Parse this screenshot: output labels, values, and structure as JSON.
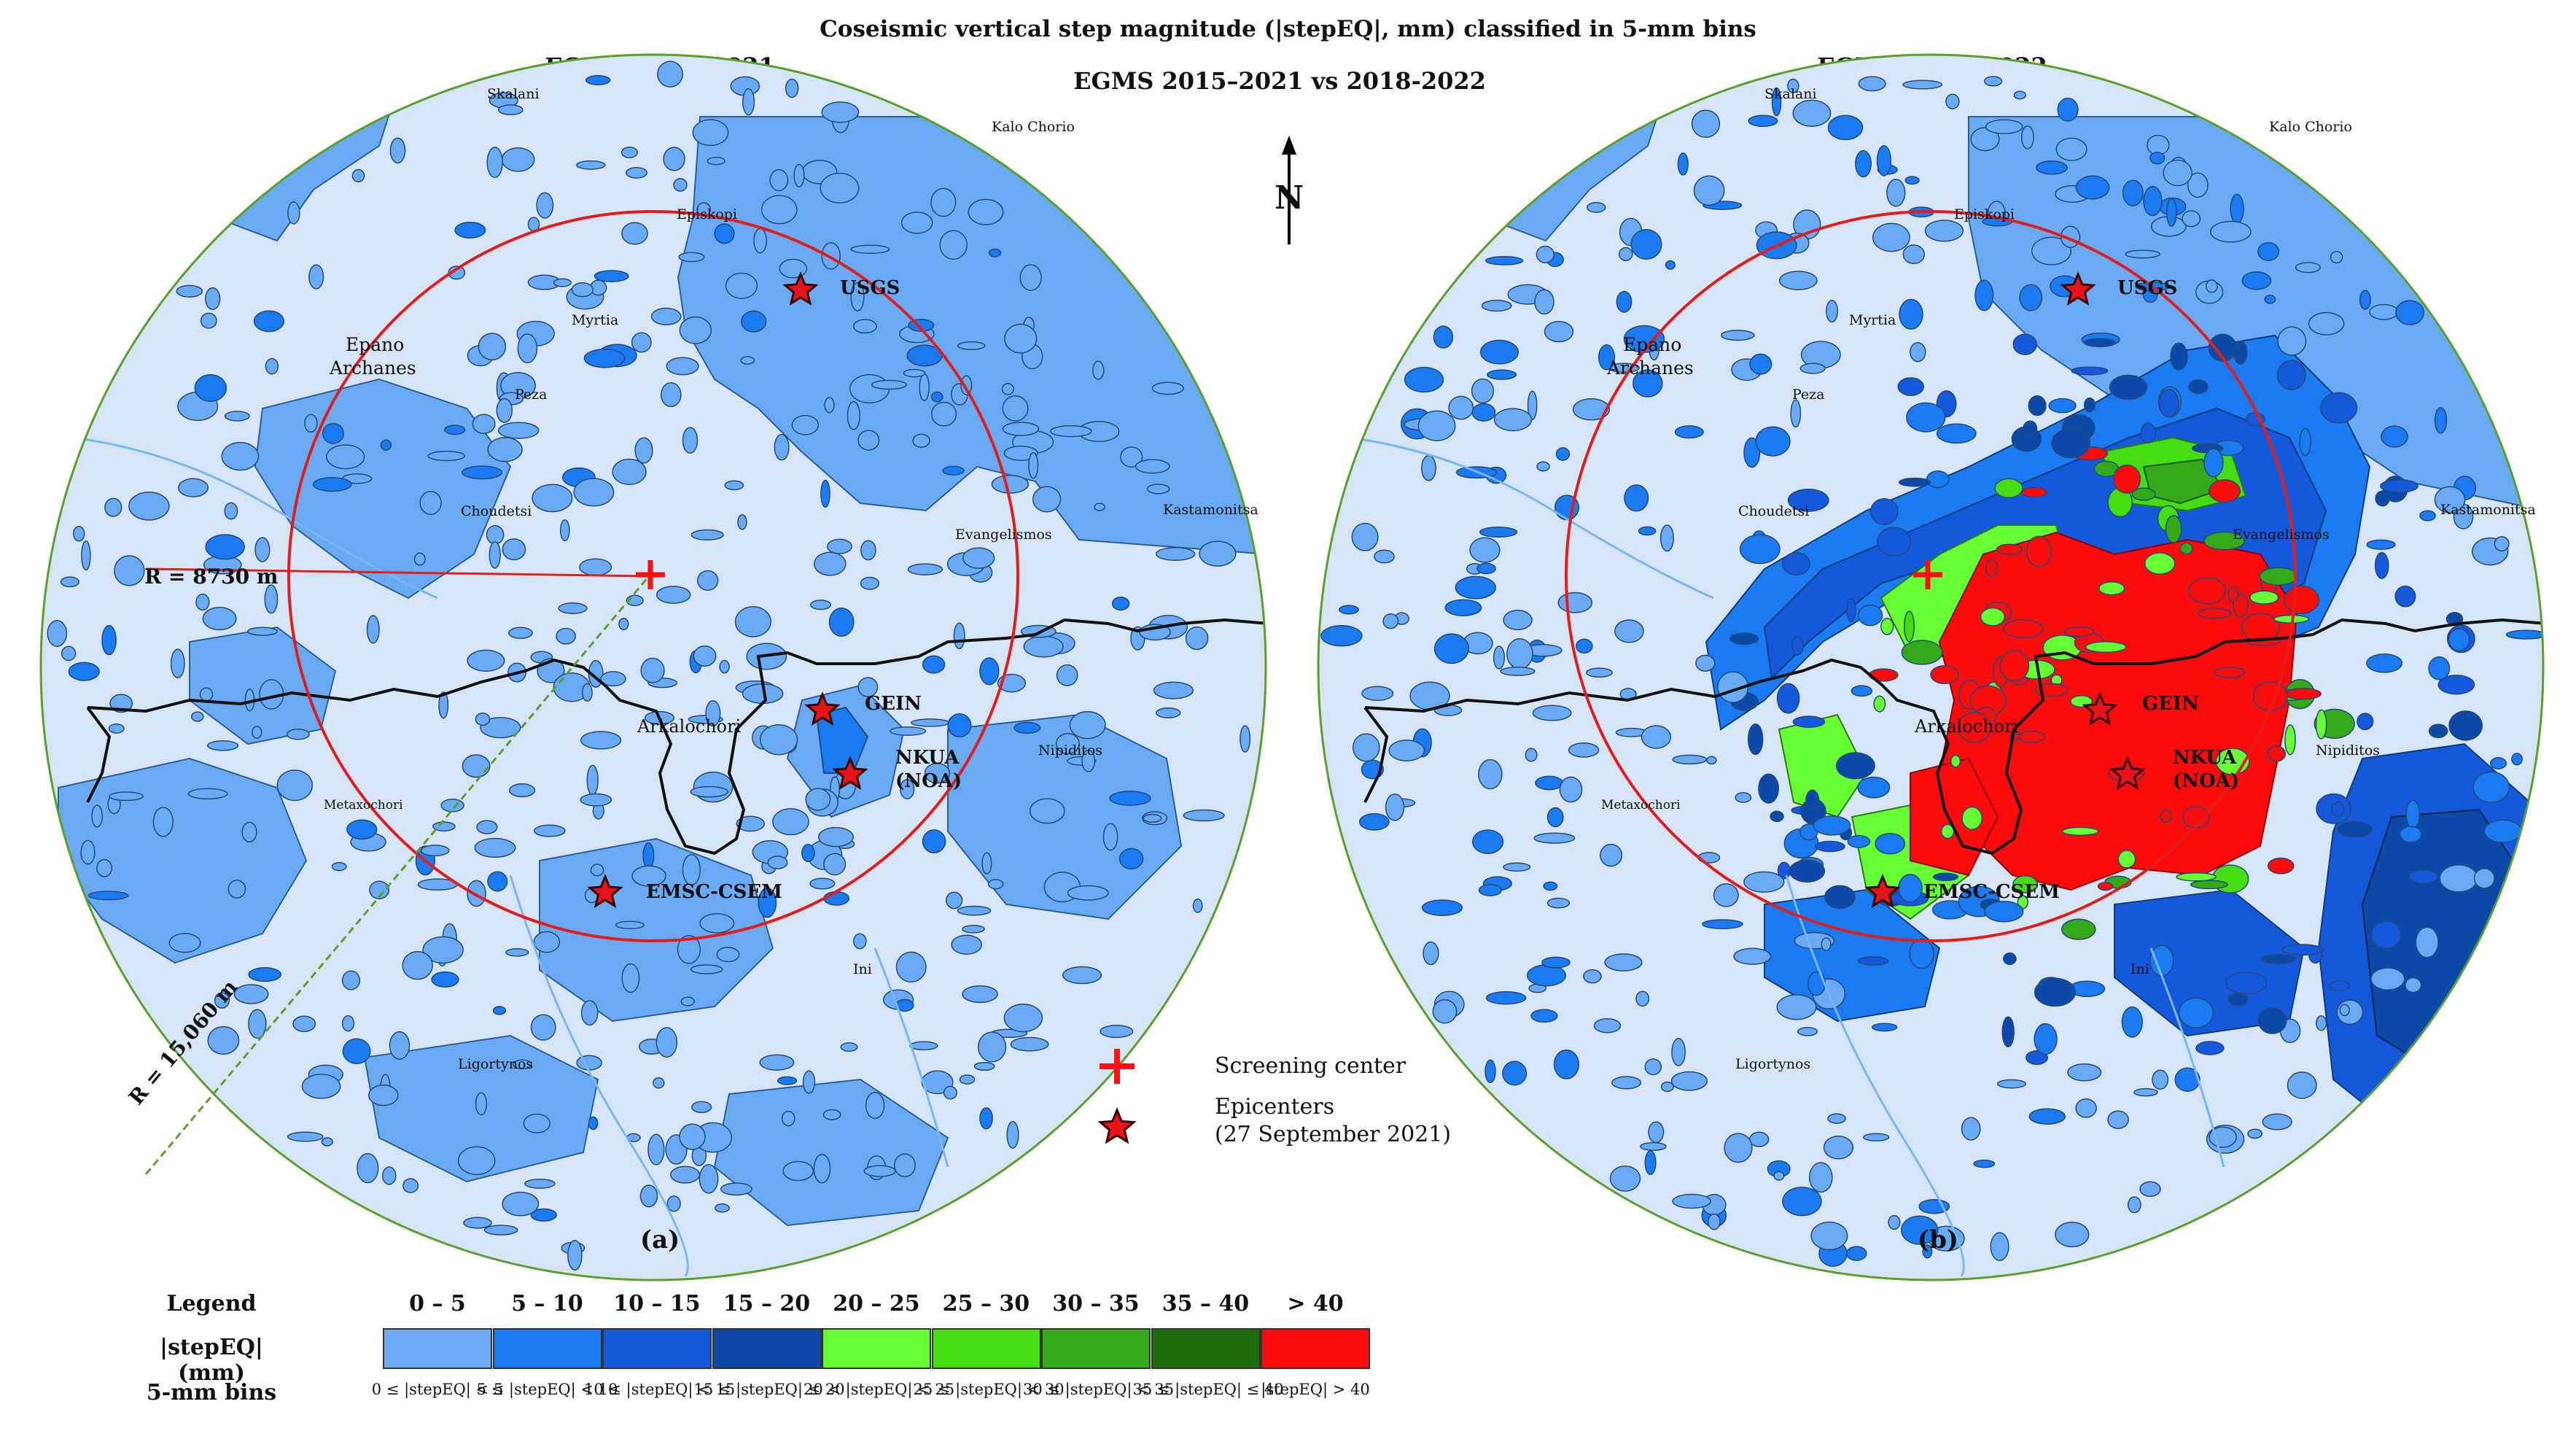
{
  "figure": {
    "title": "Coseismic vertical step magnitude (|stepEQ|, mm) classified in 5-mm bins",
    "center_title": "EGMS 2015–2021 vs 2018-2022"
  },
  "panels": [
    {
      "id": "a",
      "title": "EGMS 2015–2021",
      "letter": "(a)",
      "radius_label": "R = 8730 m",
      "outer_radius_label": "R = 15,060 m"
    },
    {
      "id": "b",
      "title": "EGMS 2018–2022",
      "letter": "(b)"
    }
  ],
  "north_label": "N",
  "places": {
    "skalani": "Skalani",
    "kalo_chorio": "Kalo Chorio",
    "episkopi": "Episkopi",
    "myrtia": "Myrtia",
    "epano": "Epano",
    "archanes": "Archanes",
    "peza": "Peza",
    "choudetsi": "Choudetsi",
    "kastamonitsa": "Kastamonitsa",
    "evangelismos": "Evangelismos",
    "arkalochori": "Arkalochori",
    "nipiditos": "Nipiditos",
    "metaxochori": "Metaxochori",
    "ini": "Ini",
    "ligortynos": "Ligortynos"
  },
  "epicenter_labels": {
    "usgs": "USGS",
    "gein": "GEIN",
    "nkua_1": "NKUA",
    "nkua_2": "(NOA)",
    "emsc": "EMSC-CSEM"
  },
  "key": {
    "screening_center": "Screening center",
    "epicenters": "Epicenters",
    "epicenters_date": "(27 September 2021)"
  },
  "legend": {
    "label_legend": "Legend",
    "label_unit": "|stepEQ| (mm)",
    "label_bins": "5-mm bins",
    "items": [
      {
        "range": "0 – 5",
        "color": "#6aaaf3",
        "cond": "0 ≤ |stepEQ| < 5"
      },
      {
        "range": "5 – 10",
        "color": "#1a7af0",
        "cond": "5 ≤ |stepEQ| < 10"
      },
      {
        "range": "10 – 15",
        "color": "#1658dc",
        "cond": "10 ≤ |stepEQ| < 15"
      },
      {
        "range": "15 – 20",
        "color": "#0d4aa8",
        "cond": "15 ≤ |stepEQ| ≤ 20"
      },
      {
        "range": "20 – 25",
        "color": "#66ff33",
        "cond": "20 < |stepEQ| < 25"
      },
      {
        "range": "25 – 30",
        "color": "#44dd11",
        "cond": "25 ≤ |stepEQ| < 30"
      },
      {
        "range": "30 – 35",
        "color": "#33aa18",
        "cond": "30 ≤ |stepEQ| < 35"
      },
      {
        "range": "35 – 40",
        "color": "#1f6e0c",
        "cond": "35 ≤ |stepEQ| ≤ 40"
      },
      {
        "range": "> 40",
        "color": "#ff0a0a",
        "cond": "|stepEQ| > 40"
      }
    ]
  }
}
